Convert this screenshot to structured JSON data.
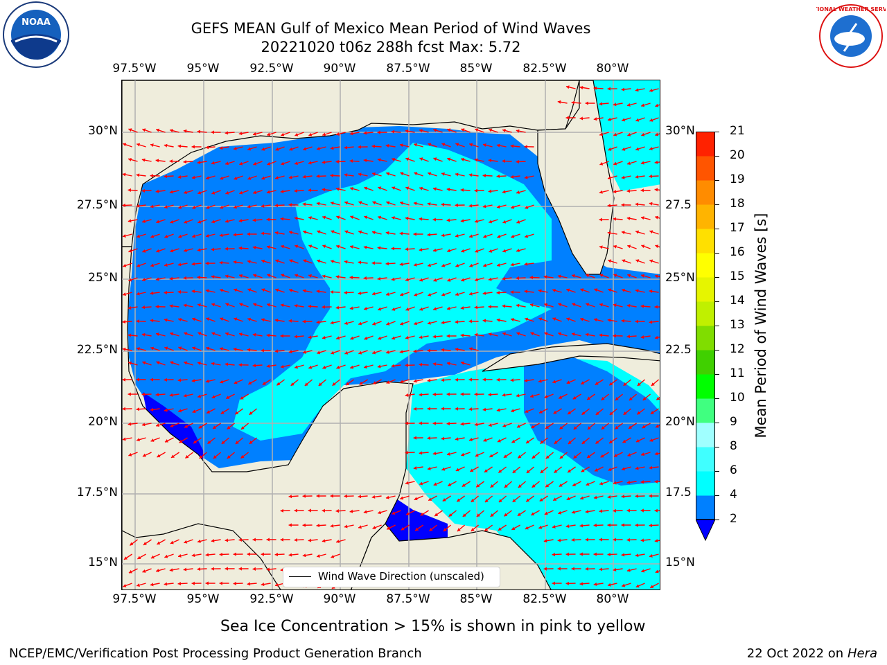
{
  "header": {
    "title_line1": "GEFS MEAN Gulf of Mexico Mean Period of Wind Waves",
    "title_line2": "20221020 t06z 288h fcst   Max: 5.72"
  },
  "logos": {
    "noaa_text": "NOAA",
    "noaa_ring": "NATIONAL OCEANIC AND ATMOSPHERIC ADMINISTRATION · U.S. DEPARTMENT OF COMMERCE",
    "nws_ring": "NATIONAL WEATHER SERVICE"
  },
  "map": {
    "lon_labels": [
      "97.5°W",
      "95°W",
      "92.5°W",
      "90°W",
      "87.5°W",
      "85°W",
      "82.5°W",
      "80°W"
    ],
    "lat_labels": [
      "30°N",
      "27.5°N",
      "25°N",
      "22.5°N",
      "20°N",
      "17.5°N",
      "15°N"
    ],
    "lat_labels_right": [
      "30°N",
      "27.5",
      "25°N",
      "22.5",
      "20°N",
      "17.5",
      "15°N"
    ],
    "colors": {
      "land": "#efeddc",
      "period_0_2": "#0000ff",
      "period_2_4": "#0080ff",
      "period_4_6": "#00ffff",
      "arrow": "#ff0000",
      "grid": "#b0b0b0"
    }
  },
  "legend": {
    "label": "Wind Wave Direction (unscaled)"
  },
  "colorbar": {
    "label": "Mean Period of Wind Waves [s]",
    "ticks": [
      "2",
      "4",
      "6",
      "8",
      "9",
      "10",
      "11",
      "12",
      "13",
      "14",
      "15",
      "16",
      "17",
      "18",
      "19",
      "20",
      "21"
    ],
    "colors": [
      "#0080ff",
      "#00ffff",
      "#40ffff",
      "#a0ffff",
      "#40ff80",
      "#00ff00",
      "#40d000",
      "#80dd00",
      "#c0f000",
      "#e6f500",
      "#ffff00",
      "#ffe000",
      "#ffb400",
      "#ff8c00",
      "#ff5500",
      "#ff2200"
    ],
    "extend_color": "#0000ff"
  },
  "caption": "Sea Ice Concentration > 15% is shown in pink to yellow",
  "footer": {
    "left": "NCEP/EMC/Verification Post Processing Product Generation Branch",
    "right_prefix": "22 Oct 2022 on",
    "right_host": "Hera"
  }
}
